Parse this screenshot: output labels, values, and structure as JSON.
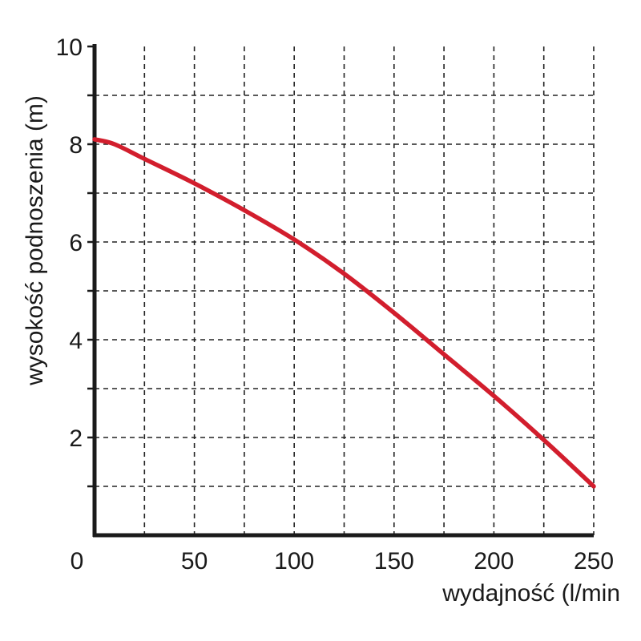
{
  "chart_data": {
    "type": "line",
    "title": "",
    "xlabel": "wydajność (l/min",
    "ylabel": "wysokość podnoszenia (m)",
    "xlim": [
      0,
      250
    ],
    "ylim": [
      0,
      10
    ],
    "x_ticks": [
      {
        "value": 50,
        "label": "50"
      },
      {
        "value": 100,
        "label": "100"
      },
      {
        "value": 150,
        "label": "150"
      },
      {
        "value": 200,
        "label": "200"
      },
      {
        "value": 250,
        "label": "250"
      }
    ],
    "y_ticks": [
      {
        "value": 2,
        "label": "2"
      },
      {
        "value": 4,
        "label": "4"
      },
      {
        "value": 6,
        "label": "6"
      },
      {
        "value": 8,
        "label": "8"
      },
      {
        "value": 10,
        "label": "10"
      }
    ],
    "origin_label": "0",
    "x_grid_step": 25,
    "y_grid_step": 1,
    "grid": true,
    "grid_style": "dashed",
    "legend": "none",
    "series": [
      {
        "color": "#d21e2d",
        "x": [
          0,
          10,
          25,
          50,
          75,
          100,
          125,
          150,
          175,
          200,
          225,
          250
        ],
        "y": [
          8.1,
          8.0,
          7.7,
          7.2,
          6.65,
          6.05,
          5.35,
          4.55,
          3.7,
          2.85,
          1.95,
          1.0
        ]
      }
    ]
  }
}
